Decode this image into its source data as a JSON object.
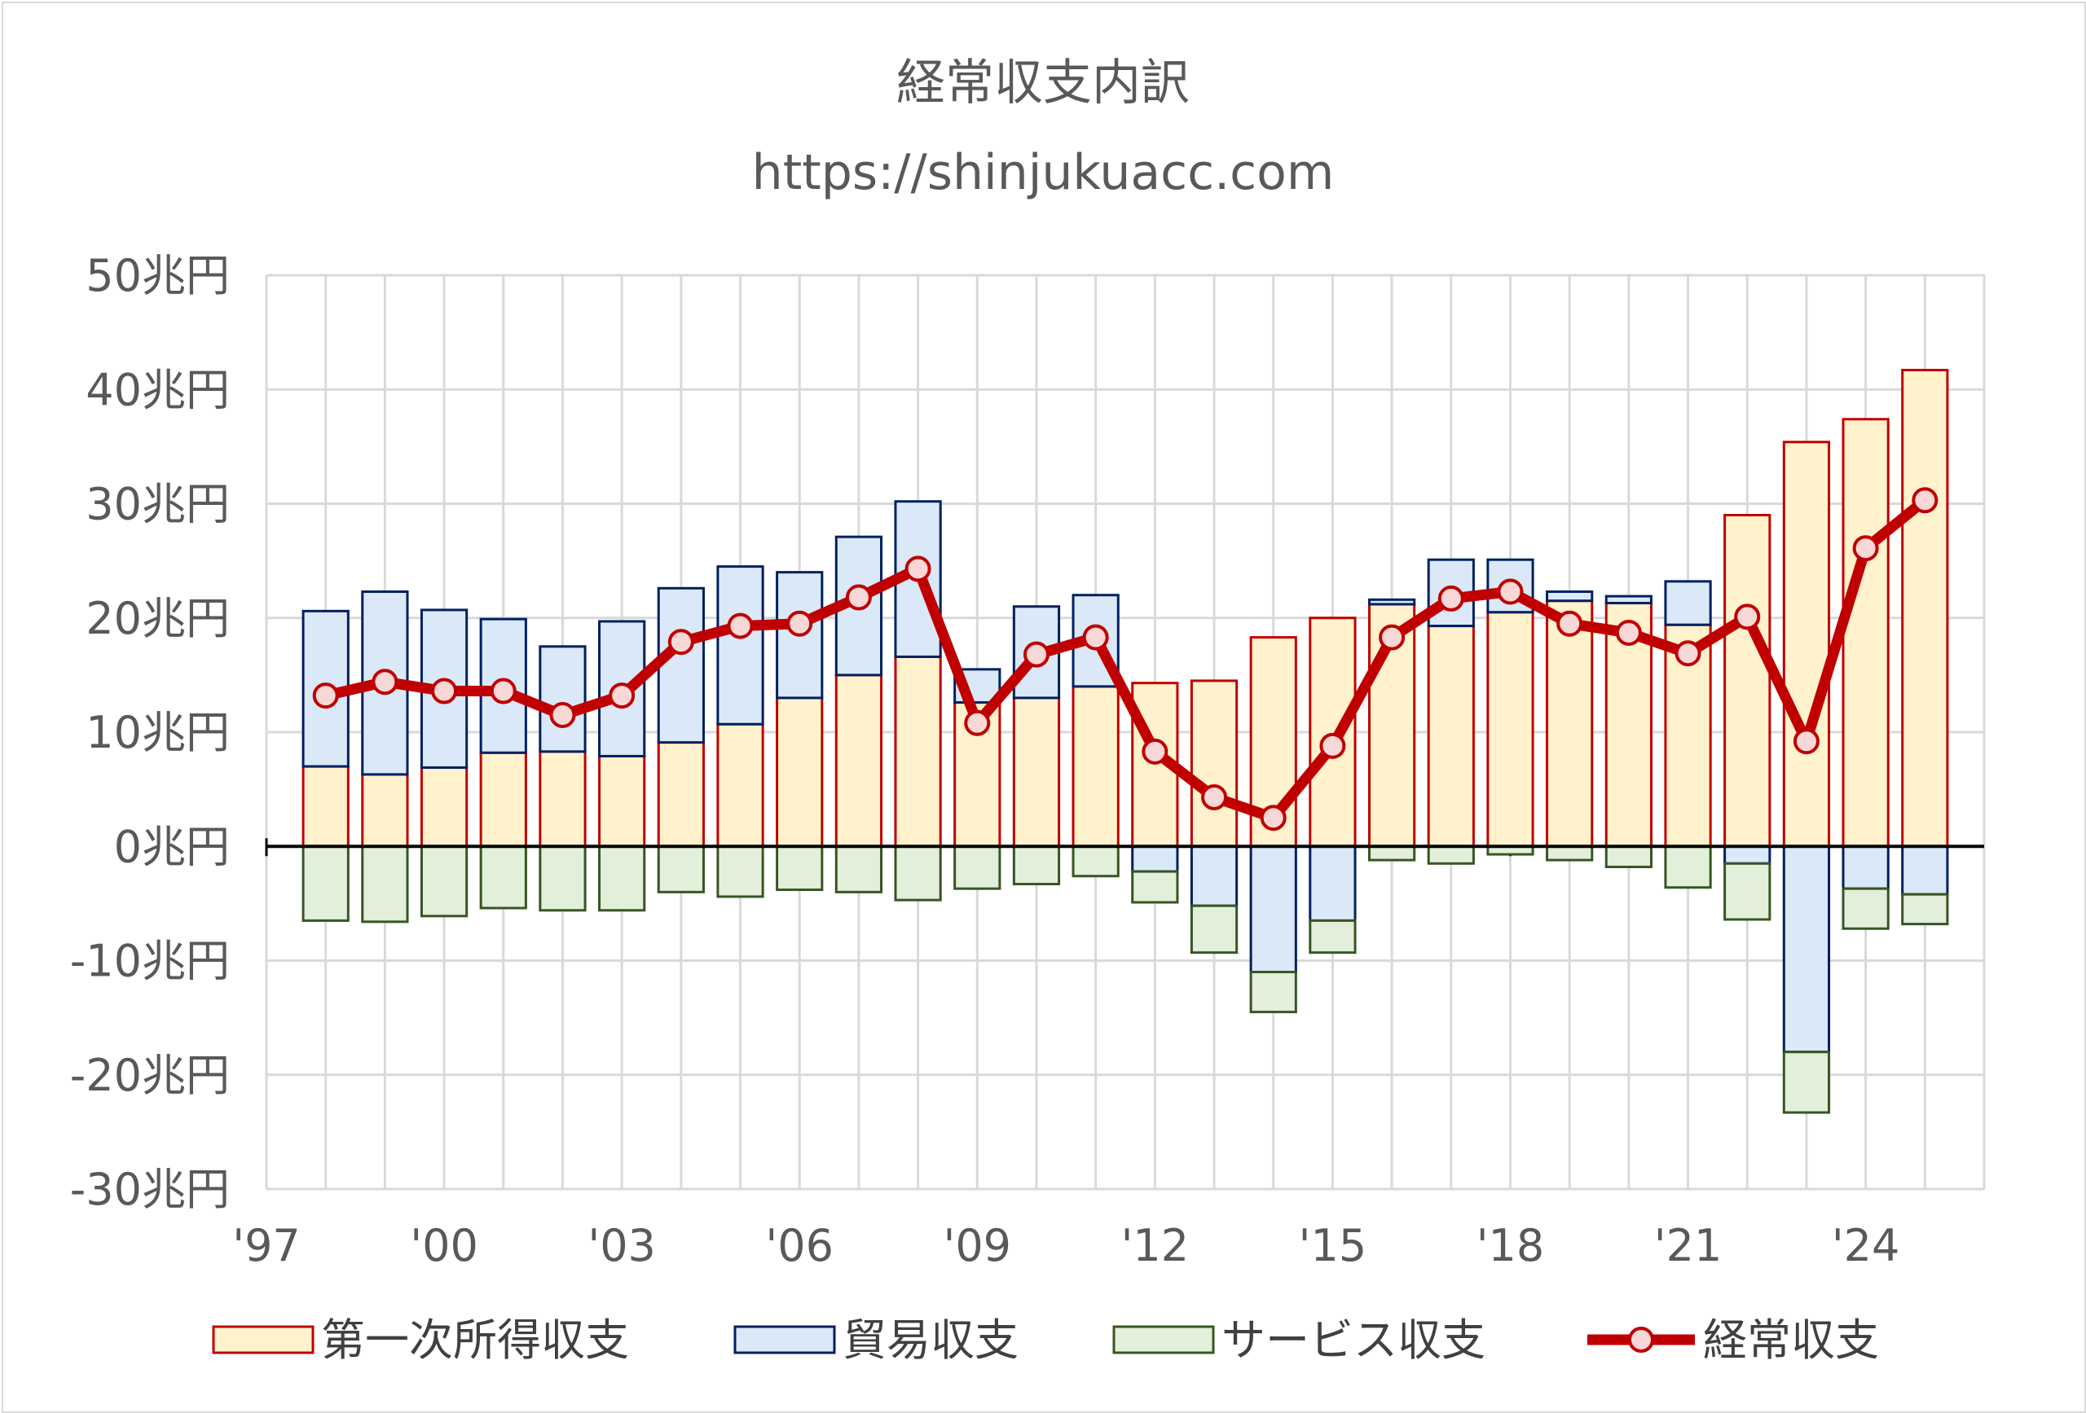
{
  "chart_data": {
    "type": "bar",
    "title": "経常収支内訳",
    "subtitle": "https://shinjukuacc.com",
    "x": [
      1998,
      1999,
      2000,
      2001,
      2002,
      2003,
      2004,
      2005,
      2006,
      2007,
      2008,
      2009,
      2010,
      2011,
      2012,
      2013,
      2014,
      2015,
      2016,
      2017,
      2018,
      2019,
      2020,
      2021,
      2022,
      2023,
      2024,
      2025
    ],
    "x_tick_labels": [
      "'97",
      "'00",
      "'03",
      "'06",
      "'09",
      "'12",
      "'15",
      "'18",
      "'21",
      "'24"
    ],
    "x_tick_values": [
      1997,
      2000,
      2003,
      2006,
      2009,
      2012,
      2015,
      2018,
      2021,
      2024
    ],
    "xlim": [
      1997,
      2026
    ],
    "y_tick_labels": [
      "50兆円",
      "40兆円",
      "30兆円",
      "20兆円",
      "10兆円",
      "0兆円",
      "-10兆円",
      "-20兆円",
      "-30兆円"
    ],
    "y_tick_values": [
      50,
      40,
      30,
      20,
      10,
      0,
      -10,
      -20,
      -30
    ],
    "ylim": [
      -30,
      50
    ],
    "grid": true,
    "legend_position": "bottom",
    "series": [
      {
        "name": "第一次所得収支",
        "kind": "bar",
        "fill": "#fff2cc",
        "stroke": "#c00000",
        "values": [
          7.0,
          6.3,
          6.9,
          8.2,
          8.3,
          7.9,
          9.1,
          10.7,
          13.0,
          15.0,
          16.6,
          12.6,
          13.0,
          14.0,
          14.3,
          14.5,
          18.3,
          20.0,
          21.2,
          19.3,
          20.5,
          21.5,
          21.3,
          19.4,
          29.0,
          35.4,
          37.4,
          41.7
        ]
      },
      {
        "name": "貿易収支",
        "kind": "bar",
        "fill": "#dae8f7",
        "stroke": "#002060",
        "values": [
          13.6,
          16.0,
          13.8,
          11.7,
          9.2,
          11.8,
          13.5,
          13.8,
          11.0,
          12.1,
          13.6,
          2.9,
          8.0,
          8.0,
          -2.2,
          -5.2,
          -11.0,
          -6.5,
          0.4,
          5.8,
          4.6,
          0.8,
          0.6,
          3.8,
          -1.5,
          -18.0,
          -3.7,
          -4.2
        ]
      },
      {
        "name": "サービス収支",
        "kind": "bar",
        "fill": "#e2efda",
        "stroke": "#375623",
        "values": [
          -6.5,
          -6.6,
          -6.1,
          -5.4,
          -5.6,
          -5.6,
          -4.0,
          -4.4,
          -3.8,
          -4.0,
          -4.7,
          -3.7,
          -3.3,
          -2.6,
          -2.7,
          -4.1,
          -3.5,
          -2.8,
          -1.2,
          -1.5,
          -0.7,
          -1.2,
          -1.8,
          -3.6,
          -4.9,
          -5.3,
          -3.5,
          -2.6
        ]
      },
      {
        "name": "経常収支",
        "kind": "line",
        "stroke": "#c00000",
        "marker_fill": "#f8d7d7",
        "values": [
          13.2,
          14.4,
          13.6,
          13.6,
          11.5,
          13.2,
          17.9,
          19.3,
          19.5,
          21.8,
          24.3,
          10.8,
          16.8,
          18.3,
          8.3,
          4.3,
          2.5,
          8.8,
          18.3,
          21.7,
          22.3,
          19.5,
          18.7,
          16.9,
          20.1,
          9.2,
          26.1,
          30.3
        ]
      }
    ]
  }
}
